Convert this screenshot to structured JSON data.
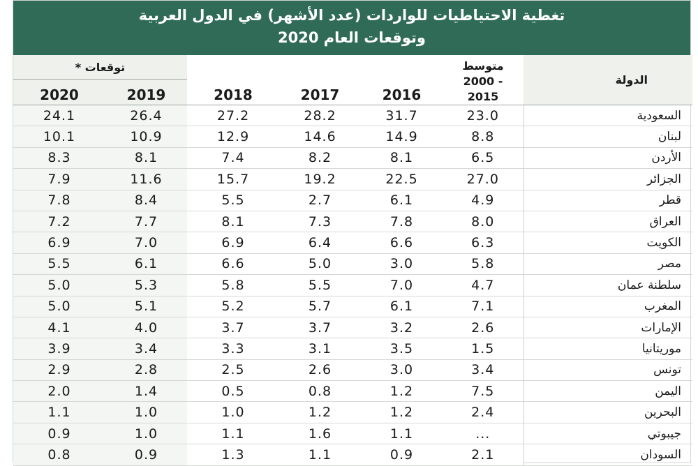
{
  "title": {
    "line1": "تغطية الاحتياطيات للواردات (عدد الأشهر) في الدول العربية",
    "line2": "وتوقعات العام 2020"
  },
  "headers": {
    "country": "الدولة",
    "forecast_group": "توقعات *",
    "avg_line1": "متوسط",
    "avg_line2": "2000 -",
    "avg_line3": "2015",
    "y2016": "2016",
    "y2017": "2017",
    "y2018": "2018",
    "y2019": "2019",
    "y2020": "2020"
  },
  "rows": [
    {
      "country": "السعودية",
      "avg": "23.0",
      "y2016": "31.7",
      "y2017": "28.2",
      "y2018": "27.2",
      "y2019": "26.4",
      "y2020": "24.1"
    },
    {
      "country": "لبنان",
      "avg": "8.8",
      "y2016": "14.9",
      "y2017": "14.6",
      "y2018": "12.9",
      "y2019": "10.9",
      "y2020": "10.1"
    },
    {
      "country": "الأردن",
      "avg": "6.5",
      "y2016": "8.1",
      "y2017": "8.2",
      "y2018": "7.4",
      "y2019": "8.1",
      "y2020": "8.3"
    },
    {
      "country": "الجزائر",
      "avg": "27.0",
      "y2016": "22.5",
      "y2017": "19.2",
      "y2018": "15.7",
      "y2019": "11.6",
      "y2020": "7.9"
    },
    {
      "country": "قطر",
      "avg": "4.9",
      "y2016": "6.1",
      "y2017": "2.7",
      "y2018": "5.5",
      "y2019": "8.4",
      "y2020": "7.8"
    },
    {
      "country": "العراق",
      "avg": "8.0",
      "y2016": "7.8",
      "y2017": "7.3",
      "y2018": "8.1",
      "y2019": "7.7",
      "y2020": "7.2"
    },
    {
      "country": "الكويت",
      "avg": "6.3",
      "y2016": "6.6",
      "y2017": "6.4",
      "y2018": "6.9",
      "y2019": "7.0",
      "y2020": "6.9"
    },
    {
      "country": "مصر",
      "avg": "5.8",
      "y2016": "3.0",
      "y2017": "5.0",
      "y2018": "6.6",
      "y2019": "6.1",
      "y2020": "5.5"
    },
    {
      "country": "سلطنة عمان",
      "avg": "4.7",
      "y2016": "7.0",
      "y2017": "5.5",
      "y2018": "5.8",
      "y2019": "5.3",
      "y2020": "5.0"
    },
    {
      "country": "المغرب",
      "avg": "7.1",
      "y2016": "6.1",
      "y2017": "5.7",
      "y2018": "5.2",
      "y2019": "5.1",
      "y2020": "5.0"
    },
    {
      "country": "الإمارات",
      "avg": "2.6",
      "y2016": "3.2",
      "y2017": "3.7",
      "y2018": "3.7",
      "y2019": "4.0",
      "y2020": "4.1"
    },
    {
      "country": "موريتانيا",
      "avg": "1.5",
      "y2016": "3.5",
      "y2017": "3.1",
      "y2018": "3.3",
      "y2019": "3.4",
      "y2020": "3.9"
    },
    {
      "country": "تونس",
      "avg": "3.4",
      "y2016": "3.0",
      "y2017": "2.6",
      "y2018": "2.5",
      "y2019": "2.8",
      "y2020": "2.9"
    },
    {
      "country": "اليمن",
      "avg": "7.5",
      "y2016": "1.2",
      "y2017": "0.8",
      "y2018": "0.5",
      "y2019": "1.4",
      "y2020": "2.0"
    },
    {
      "country": "البحرين",
      "avg": "2.4",
      "y2016": "1.2",
      "y2017": "1.2",
      "y2018": "1.0",
      "y2019": "1.0",
      "y2020": "1.1"
    },
    {
      "country": "جيبوتي",
      "avg": "...",
      "y2016": "1.1",
      "y2017": "1.6",
      "y2018": "1.1",
      "y2019": "1.0",
      "y2020": "0.9"
    },
    {
      "country": "السودان",
      "avg": "2.1",
      "y2016": "0.9",
      "y2017": "1.1",
      "y2018": "1.3",
      "y2019": "0.9",
      "y2020": "0.8"
    }
  ]
}
